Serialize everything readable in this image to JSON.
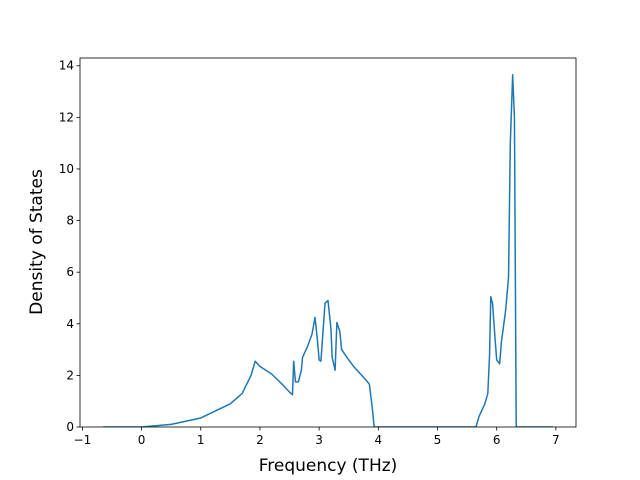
{
  "chart_data": {
    "type": "line",
    "xlabel": "Frequency (THz)",
    "ylabel": "Density of States",
    "x": [
      -0.65,
      0,
      0.5,
      1.0,
      1.5,
      1.7,
      1.85,
      1.92,
      2.0,
      2.2,
      2.4,
      2.5,
      2.55,
      2.57,
      2.6,
      2.65,
      2.7,
      2.72,
      2.8,
      2.88,
      2.93,
      2.97,
      3.0,
      3.03,
      3.1,
      3.15,
      3.2,
      3.22,
      3.27,
      3.3,
      3.35,
      3.38,
      3.5,
      3.6,
      3.8,
      3.85,
      3.9,
      3.93,
      5.65,
      5.7,
      5.8,
      5.85,
      5.88,
      5.9,
      5.93,
      5.97,
      6.0,
      6.05,
      6.08,
      6.15,
      6.2,
      6.23,
      6.27,
      6.3,
      6.33,
      6.95
    ],
    "series": [
      {
        "color": "#1f77b4",
        "values": [
          0,
          0,
          0.1,
          0.35,
          0.9,
          1.3,
          2.0,
          2.55,
          2.35,
          2.05,
          1.6,
          1.35,
          1.25,
          2.55,
          1.75,
          1.75,
          2.2,
          2.7,
          3.1,
          3.6,
          4.25,
          3.4,
          2.6,
          2.55,
          4.8,
          4.9,
          3.8,
          2.7,
          2.2,
          4.05,
          3.7,
          3.0,
          2.6,
          2.3,
          1.8,
          1.65,
          0.7,
          0,
          0,
          0.4,
          0.9,
          1.3,
          2.8,
          5.05,
          4.8,
          3.5,
          2.6,
          2.45,
          3.3,
          4.5,
          5.8,
          11.0,
          13.65,
          12.0,
          0,
          0
        ]
      }
    ],
    "xlim": [
      -1.04,
      7.34
    ],
    "xticks": [
      {
        "value": -1,
        "label": "−1"
      },
      0,
      1,
      2,
      3,
      4,
      5,
      6,
      7
    ],
    "ylim": [
      0,
      14.3
    ],
    "yticks": [
      0,
      2,
      4,
      6,
      8,
      10,
      12,
      14
    ]
  }
}
